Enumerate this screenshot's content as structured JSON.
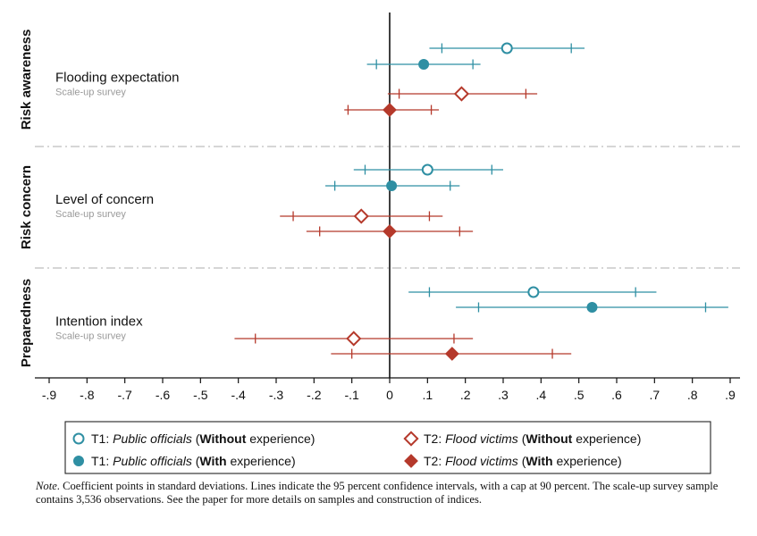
{
  "chart_data": {
    "type": "scatter",
    "subtype": "coefficient plot with confidence intervals",
    "x_axis": {
      "range": [
        -0.92,
        0.92
      ],
      "ticks": [
        -0.9,
        -0.8,
        -0.7,
        -0.6,
        -0.5,
        -0.4,
        -0.3,
        -0.2,
        -0.1,
        0,
        0.1,
        0.2,
        0.3,
        0.4,
        0.5,
        0.6,
        0.7,
        0.8,
        0.9
      ],
      "tick_labels": [
        "-.9",
        "-.8",
        "-.7",
        "-.6",
        "-.5",
        "-.4",
        "-.3",
        "-.2",
        "-.1",
        "0",
        ".1",
        ".2",
        ".3",
        ".4",
        ".5",
        ".6",
        ".7",
        ".8",
        ".9"
      ],
      "reference_line": 0
    },
    "groups": [
      {
        "name": "Risk awareness",
        "outcome": "Flooding expectation",
        "sample": "Scale-up survey",
        "estimates": [
          {
            "series": "t1_without",
            "coef": 0.31,
            "ci95": [
              0.105,
              0.515
            ],
            "ci90": [
              0.138,
              0.48
            ]
          },
          {
            "series": "t1_with",
            "coef": 0.09,
            "ci95": [
              -0.06,
              0.24
            ],
            "ci90": [
              -0.035,
              0.22
            ]
          },
          {
            "series": "t2_without",
            "coef": 0.19,
            "ci95": [
              -0.005,
              0.39
            ],
            "ci90": [
              0.025,
              0.36
            ]
          },
          {
            "series": "t2_with",
            "coef": 0.0,
            "ci95": [
              -0.12,
              0.13
            ],
            "ci90": [
              -0.11,
              0.11
            ]
          }
        ]
      },
      {
        "name": "Risk concern",
        "outcome": "Level of concern",
        "sample": "Scale-up survey",
        "estimates": [
          {
            "series": "t1_without",
            "coef": 0.1,
            "ci95": [
              -0.095,
              0.3
            ],
            "ci90": [
              -0.065,
              0.27
            ]
          },
          {
            "series": "t1_with",
            "coef": 0.005,
            "ci95": [
              -0.17,
              0.185
            ],
            "ci90": [
              -0.145,
              0.16
            ]
          },
          {
            "series": "t2_without",
            "coef": -0.075,
            "ci95": [
              -0.29,
              0.14
            ],
            "ci90": [
              -0.255,
              0.105
            ]
          },
          {
            "series": "t2_with",
            "coef": 0.0,
            "ci95": [
              -0.22,
              0.22
            ],
            "ci90": [
              -0.185,
              0.185
            ]
          }
        ]
      },
      {
        "name": "Preparedness",
        "outcome": "Intention index",
        "sample": "Scale-up survey",
        "estimates": [
          {
            "series": "t1_without",
            "coef": 0.38,
            "ci95": [
              0.05,
              0.705
            ],
            "ci90": [
              0.105,
              0.65
            ]
          },
          {
            "series": "t1_with",
            "coef": 0.535,
            "ci95": [
              0.175,
              0.895
            ],
            "ci90": [
              0.235,
              0.835
            ]
          },
          {
            "series": "t2_without",
            "coef": -0.095,
            "ci95": [
              -0.41,
              0.22
            ],
            "ci90": [
              -0.355,
              0.17
            ]
          },
          {
            "series": "t2_with",
            "coef": 0.165,
            "ci95": [
              -0.155,
              0.48
            ],
            "ci90": [
              -0.1,
              0.43
            ]
          }
        ]
      }
    ],
    "series": [
      {
        "id": "t1_without",
        "treatment": "T1: ",
        "who": "Public officials",
        "pre": " (",
        "bold": "Without",
        "post": " experience)",
        "marker": "hollow-circle",
        "color": "#2f8fa3"
      },
      {
        "id": "t1_with",
        "treatment": "T1: ",
        "who": "Public officials",
        "pre": " (",
        "bold": "With",
        "post": " experience)",
        "marker": "filled-circle",
        "color": "#2f8fa3"
      },
      {
        "id": "t2_without",
        "treatment": "T2: ",
        "who": "Flood victims",
        "pre": " (",
        "bold": "Without",
        "post": " experience)",
        "marker": "hollow-diamond",
        "color": "#b5392b"
      },
      {
        "id": "t2_with",
        "treatment": "T2: ",
        "who": "Flood victims",
        "pre": " (",
        "bold": "With",
        "post": " experience)",
        "marker": "filled-diamond",
        "color": "#b5392b"
      }
    ],
    "legend_placement": "bottom",
    "grid": false
  },
  "note": {
    "label": "Note",
    "text": ".  Coefficient points in standard deviations. Lines indicate the 95 percent confidence intervals, with a cap at 90 percent. The scale-up survey sample contains 3,536 observations. See the paper for more details on samples and construction of indices."
  }
}
